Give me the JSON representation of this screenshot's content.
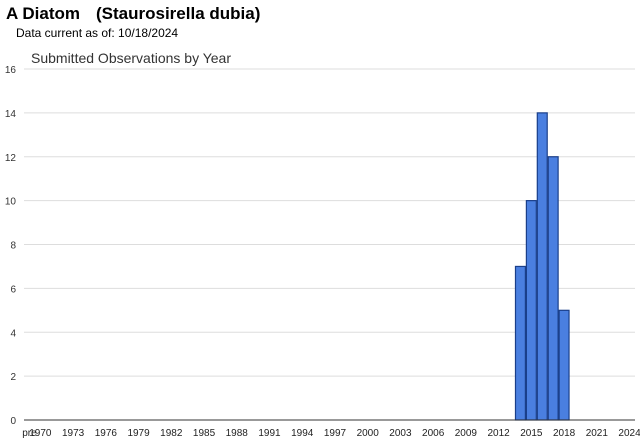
{
  "header": {
    "common_name": "A Diatom",
    "scientific_name": "(Staurosirella dubia)",
    "data_current": "Data current as of: 10/18/2024"
  },
  "chart_data": {
    "type": "bar",
    "title": "Submitted Observations by Year",
    "xlabel": "",
    "ylabel": "",
    "ylim": [
      0,
      16
    ],
    "yticks": [
      0,
      2,
      4,
      6,
      8,
      10,
      12,
      14,
      16
    ],
    "grid": true,
    "bar_color": "#4a7fe0",
    "bar_stroke": "#1a3f8a",
    "categories": [
      "pre",
      "1970",
      "1971",
      "1972",
      "1973",
      "1974",
      "1975",
      "1976",
      "1977",
      "1978",
      "1979",
      "1980",
      "1981",
      "1982",
      "1983",
      "1984",
      "1985",
      "1986",
      "1987",
      "1988",
      "1989",
      "1990",
      "1991",
      "1992",
      "1993",
      "1994",
      "1995",
      "1996",
      "1997",
      "1998",
      "1999",
      "2000",
      "2001",
      "2002",
      "2003",
      "2004",
      "2005",
      "2006",
      "2007",
      "2008",
      "2009",
      "2010",
      "2011",
      "2012",
      "2013",
      "2014",
      "2015",
      "2016",
      "2017",
      "2018",
      "2019",
      "2020",
      "2021",
      "2022",
      "2023",
      "2024"
    ],
    "xtick_labels": [
      "pre",
      "1970",
      "1973",
      "1976",
      "1979",
      "1982",
      "1985",
      "1988",
      "1991",
      "1994",
      "1997",
      "2000",
      "2003",
      "2006",
      "2009",
      "2012",
      "2015",
      "2018",
      "2021",
      "2024"
    ],
    "values": [
      0,
      0,
      0,
      0,
      0,
      0,
      0,
      0,
      0,
      0,
      0,
      0,
      0,
      0,
      0,
      0,
      0,
      0,
      0,
      0,
      0,
      0,
      0,
      0,
      0,
      0,
      0,
      0,
      0,
      0,
      0,
      0,
      0,
      0,
      0,
      0,
      0,
      0,
      0,
      0,
      0,
      0,
      0,
      0,
      0,
      7,
      10,
      14,
      12,
      5,
      0,
      0,
      0,
      0,
      0,
      0
    ]
  }
}
